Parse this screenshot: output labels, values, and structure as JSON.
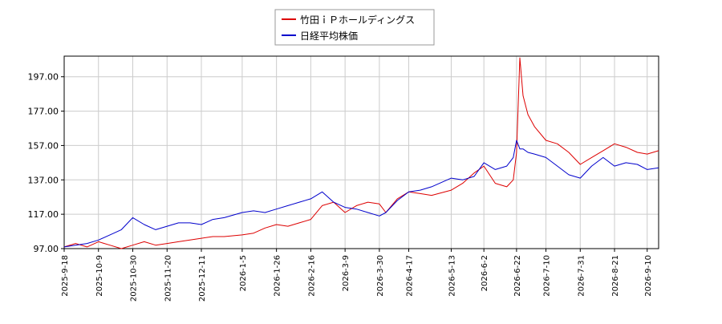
{
  "colors": {
    "series_1": "#dd0000",
    "series_2": "#0000cc",
    "grid": "#cccccc",
    "axis": "#000000",
    "background": "#ffffff"
  },
  "chart_data": {
    "type": "line",
    "title": "",
    "xlabel": "",
    "ylabel": "",
    "legend_position": "top-center",
    "grid": true,
    "ylim": [
      97,
      209
    ],
    "y_ticks": [
      "97.00",
      "117.00",
      "137.00",
      "157.00",
      "177.00",
      "197.00"
    ],
    "x_ticks": [
      "2025-9-18",
      "2025-10-9",
      "2025-10-30",
      "2025-11-20",
      "2025-12-11",
      "2026-1-5",
      "2026-1-26",
      "2026-2-16",
      "2026-3-9",
      "2026-3-30",
      "2026-4-17",
      "2026-5-13",
      "2026-6-2",
      "2026-6-22",
      "2026-7-10",
      "2026-7-31",
      "2026-8-21",
      "2026-9-10"
    ],
    "x": [
      "2025-9-18",
      "2025-9-25",
      "2025-10-2",
      "2025-10-9",
      "2025-10-16",
      "2025-10-23",
      "2025-10-30",
      "2025-11-6",
      "2025-11-13",
      "2025-11-20",
      "2025-11-27",
      "2025-12-4",
      "2025-12-11",
      "2025-12-18",
      "2025-12-25",
      "2026-1-5",
      "2026-1-12",
      "2026-1-19",
      "2026-1-26",
      "2026-2-2",
      "2026-2-9",
      "2026-2-16",
      "2026-2-23",
      "2026-3-2",
      "2026-3-9",
      "2026-3-16",
      "2026-3-23",
      "2026-3-30",
      "2026-4-3",
      "2026-4-10",
      "2026-4-17",
      "2026-4-24",
      "2026-5-1",
      "2026-5-13",
      "2026-5-20",
      "2026-5-27",
      "2026-6-2",
      "2026-6-9",
      "2026-6-16",
      "2026-6-20",
      "2026-6-22",
      "2026-6-24",
      "2026-6-26",
      "2026-6-29",
      "2026-7-3",
      "2026-7-10",
      "2026-7-17",
      "2026-7-24",
      "2026-7-31",
      "2026-8-7",
      "2026-8-14",
      "2026-8-21",
      "2026-8-28",
      "2026-9-4",
      "2026-9-10",
      "2026-9-17"
    ],
    "series": [
      {
        "name": "竹田ｉＰホールディングス",
        "color": "#dd0000",
        "values": [
          98,
          100,
          98,
          101,
          99,
          97,
          99,
          101,
          99,
          100,
          101,
          102,
          103,
          104,
          104,
          105,
          106,
          109,
          111,
          110,
          112,
          114,
          122,
          124,
          118,
          122,
          124,
          123,
          118,
          126,
          130,
          129,
          128,
          131,
          135,
          141,
          145,
          135,
          133,
          137,
          153,
          208,
          186,
          175,
          168,
          160,
          158,
          153,
          146,
          150,
          154,
          158,
          156,
          153,
          152,
          154
        ]
      },
      {
        "name": "日経平均株価",
        "color": "#0000cc",
        "values": [
          98,
          99,
          100,
          102,
          105,
          108,
          115,
          111,
          108,
          110,
          112,
          112,
          111,
          114,
          115,
          118,
          119,
          118,
          120,
          122,
          124,
          126,
          130,
          124,
          121,
          120,
          118,
          116,
          118,
          125,
          130,
          131,
          133,
          138,
          137,
          139,
          147,
          143,
          145,
          150,
          160,
          155,
          155,
          153,
          152,
          150,
          145,
          140,
          138,
          145,
          150,
          145,
          147,
          146,
          143,
          144
        ]
      }
    ]
  }
}
